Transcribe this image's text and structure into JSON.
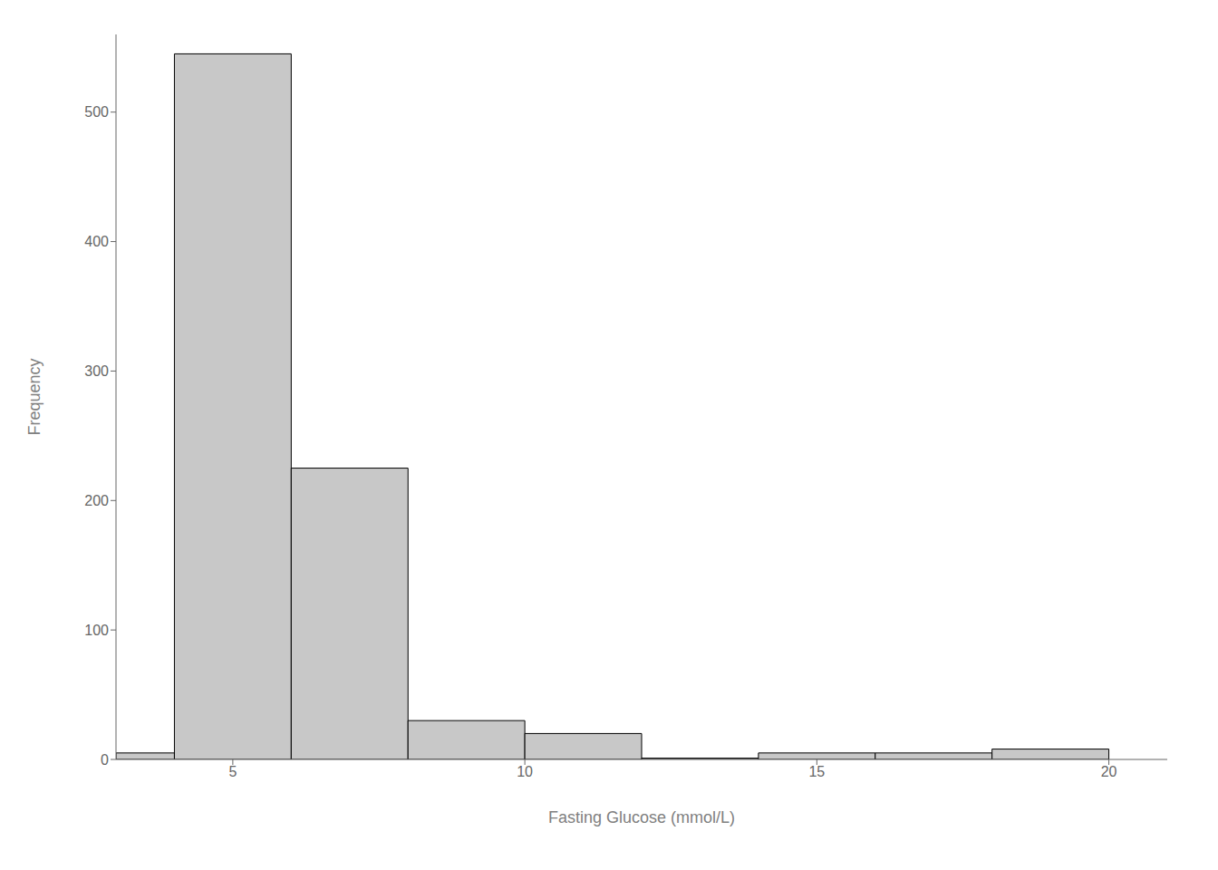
{
  "chart_data": {
    "type": "histogram",
    "xlabel": "Fasting Glucose (mmol/L)",
    "ylabel": "Frequency",
    "bins": [
      3,
      4,
      6,
      8,
      10,
      12,
      14,
      16,
      18,
      20
    ],
    "values": [
      5,
      545,
      225,
      30,
      20,
      1,
      5,
      5,
      8
    ],
    "color": "#c8c8c8",
    "xlim": [
      3.0,
      21.0
    ],
    "ylim": [
      0,
      560
    ],
    "xticks": [
      5,
      10,
      15,
      20
    ],
    "yticks": [
      0,
      100,
      200,
      300,
      400,
      500
    ],
    "grid": false
  }
}
